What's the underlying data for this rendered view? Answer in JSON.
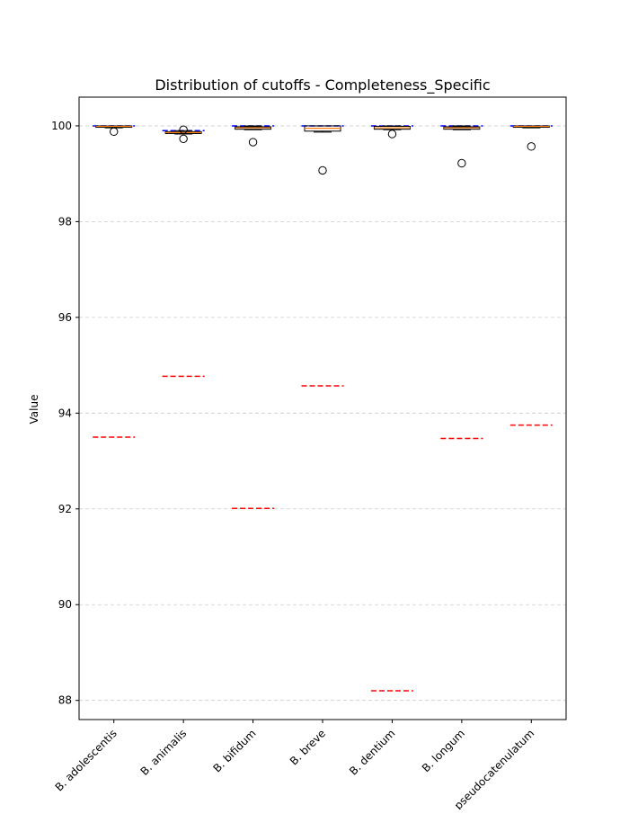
{
  "chart_data": {
    "type": "box",
    "title": "Distribution of cutoffs - Completeness_Specific",
    "xlabel": "",
    "ylabel": "Value",
    "ylim": [
      87.6,
      100.6
    ],
    "yticks": [
      88,
      90,
      92,
      94,
      96,
      98,
      100
    ],
    "grid": "y-dashed",
    "categories": [
      "B. adolescentis",
      "B. animalis",
      "B. bifidum",
      "B. breve",
      "B. dentium",
      "B. longum",
      "B. pseudocatenulatum"
    ],
    "boxes": [
      {
        "q1": 99.97,
        "median": 99.99,
        "q3": 100.0,
        "whisker_low": 99.96,
        "whisker_high": 100.0,
        "outliers": [
          99.88
        ]
      },
      {
        "q1": 99.84,
        "median": 99.86,
        "q3": 99.88,
        "whisker_low": 99.83,
        "whisker_high": 99.9,
        "outliers": [
          99.92,
          99.73
        ]
      },
      {
        "q1": 99.93,
        "median": 99.96,
        "q3": 99.98,
        "whisker_low": 99.92,
        "whisker_high": 100.0,
        "outliers": [
          99.66
        ]
      },
      {
        "q1": 99.89,
        "median": 99.95,
        "q3": 100.0,
        "whisker_low": 99.87,
        "whisker_high": 100.0,
        "outliers": [
          99.07
        ]
      },
      {
        "q1": 99.93,
        "median": 99.96,
        "q3": 99.99,
        "whisker_low": 99.92,
        "whisker_high": 100.0,
        "outliers": [
          99.83
        ]
      },
      {
        "q1": 99.93,
        "median": 99.96,
        "q3": 99.98,
        "whisker_low": 99.92,
        "whisker_high": 100.0,
        "outliers": [
          99.22
        ]
      },
      {
        "q1": 99.97,
        "median": 99.99,
        "q3": 100.0,
        "whisker_low": 99.96,
        "whisker_high": 100.0,
        "outliers": [
          99.57
        ]
      }
    ],
    "reference_lines": {
      "blue_dashed": [
        100.0,
        99.9,
        100.0,
        100.0,
        100.0,
        100.0,
        100.0
      ],
      "red_dashed": [
        93.5,
        94.77,
        92.01,
        94.57,
        88.2,
        93.47,
        93.75
      ]
    },
    "colors": {
      "median": "#ff7f0e",
      "blue_line": "#0000ff",
      "red_line": "#ff0000",
      "grid": "#cccccc",
      "axes": "#000000"
    }
  }
}
